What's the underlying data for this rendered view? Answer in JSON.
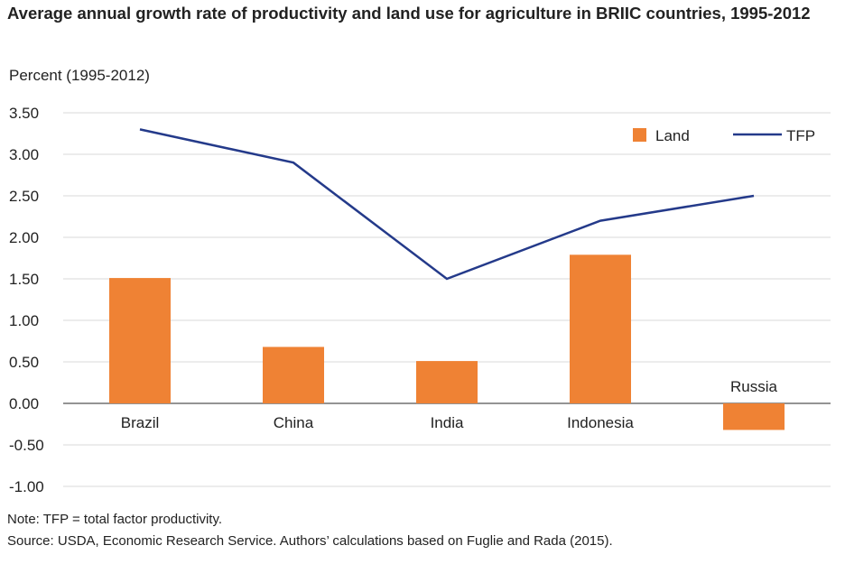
{
  "chart_data": {
    "type": "bar+line",
    "title": "Average annual growth rate of productivity and land use for agriculture in BRIIC countries, 1995-2012",
    "ylabel": "Percent (1995-2012)",
    "categories": [
      "Brazil",
      "China",
      "India",
      "Indonesia",
      "Russia"
    ],
    "series": [
      {
        "name": "Land",
        "type": "bar",
        "color": "#ef8234",
        "values": [
          1.51,
          0.68,
          0.51,
          1.79,
          -0.32
        ]
      },
      {
        "name": "TFP",
        "type": "line",
        "color": "#243a8a",
        "values": [
          3.3,
          2.9,
          1.5,
          2.2,
          2.5
        ]
      }
    ],
    "ylim": [
      -1.0,
      3.5
    ],
    "yticks": [
      "3.50",
      "3.00",
      "2.50",
      "2.00",
      "1.50",
      "1.00",
      "0.50",
      "0.00",
      "-0.50",
      "-1.00"
    ],
    "grid": true,
    "legend": "top-right"
  },
  "note": "Note: TFP = total factor productivity.",
  "source": "Source: USDA, Economic Research Service. Authors’ calculations based on Fuglie and Rada (2015)."
}
